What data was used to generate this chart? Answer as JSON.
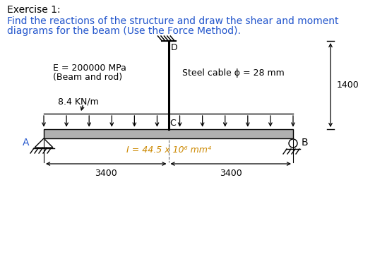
{
  "title_line1": "Exercise 1:",
  "title_line2": "Find the reactions of the structure and draw the shear and moment",
  "title_line3": "diagrams for the beam (Use the Force Method).",
  "label_E": "E = 200000 MPa",
  "label_beam": "(Beam and rod)",
  "label_load": "8.4 KN/m",
  "label_cable": "Steel cable ϕ = 28 mm",
  "label_I": "I = 44.5 x 10⁶ mm⁴",
  "label_dim1": "3400",
  "label_dim2": "3400",
  "label_height": "1400",
  "label_A": "A",
  "label_B": "B",
  "label_C": "C",
  "label_D": "D",
  "beam_color": "#b0b0b0",
  "cable_color": "#000000",
  "text_color": "#000000",
  "title1_color": "#000000",
  "title_color": "#2255cc",
  "label_I_color": "#cc8800",
  "bg_color": "#ffffff",
  "fig_width": 5.31,
  "fig_height": 3.81,
  "dpi": 100
}
